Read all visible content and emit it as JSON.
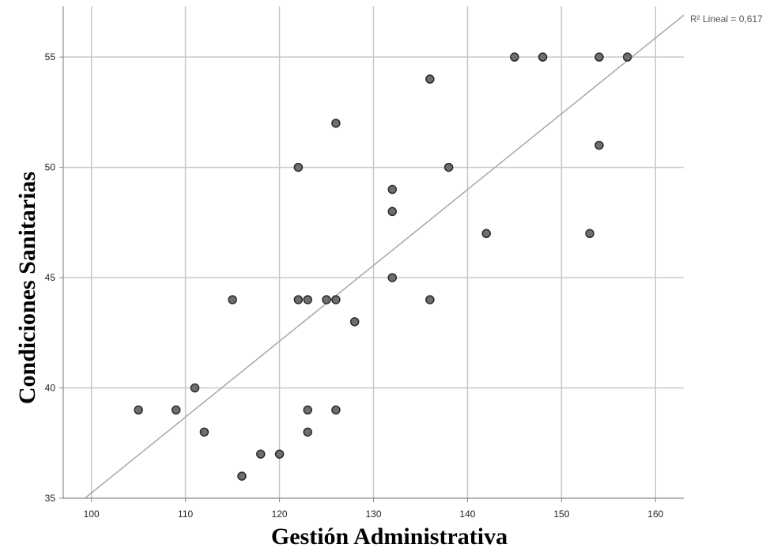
{
  "chart_data": {
    "type": "scatter",
    "xlabel": "Gestión Administrativa",
    "ylabel": "Condiciones Sanitarias",
    "xlim": [
      97,
      163
    ],
    "ylim": [
      35,
      57.3
    ],
    "x_ticks": [
      100,
      110,
      120,
      130,
      140,
      150,
      160
    ],
    "y_ticks": [
      35,
      40,
      45,
      50,
      55
    ],
    "grid": true,
    "points": [
      {
        "x": 105,
        "y": 39
      },
      {
        "x": 109,
        "y": 39
      },
      {
        "x": 111,
        "y": 40
      },
      {
        "x": 112,
        "y": 38
      },
      {
        "x": 115,
        "y": 44
      },
      {
        "x": 116,
        "y": 36
      },
      {
        "x": 118,
        "y": 37
      },
      {
        "x": 120,
        "y": 37
      },
      {
        "x": 122,
        "y": 50
      },
      {
        "x": 122,
        "y": 44
      },
      {
        "x": 123,
        "y": 44
      },
      {
        "x": 123,
        "y": 39
      },
      {
        "x": 123,
        "y": 38
      },
      {
        "x": 125,
        "y": 44
      },
      {
        "x": 126,
        "y": 52
      },
      {
        "x": 126,
        "y": 44
      },
      {
        "x": 126,
        "y": 39
      },
      {
        "x": 128,
        "y": 43
      },
      {
        "x": 132,
        "y": 49
      },
      {
        "x": 132,
        "y": 48
      },
      {
        "x": 132,
        "y": 45
      },
      {
        "x": 136,
        "y": 54
      },
      {
        "x": 136,
        "y": 44
      },
      {
        "x": 138,
        "y": 50
      },
      {
        "x": 142,
        "y": 47
      },
      {
        "x": 145,
        "y": 55
      },
      {
        "x": 148,
        "y": 55
      },
      {
        "x": 153,
        "y": 47
      },
      {
        "x": 154,
        "y": 55
      },
      {
        "x": 154,
        "y": 51
      },
      {
        "x": 157,
        "y": 55
      }
    ],
    "fit_line": {
      "x1": 99.3,
      "y1": 35,
      "x2": 163,
      "y2": 56.9
    },
    "annotation": "R² Lineal = 0,617",
    "colors": {
      "point_fill": "#6e6e6e",
      "point_stroke": "#2b2b2b",
      "grid": "#c8c8c8",
      "fit_line": "#a6a6a6",
      "axis": "#8c8c8c"
    }
  }
}
